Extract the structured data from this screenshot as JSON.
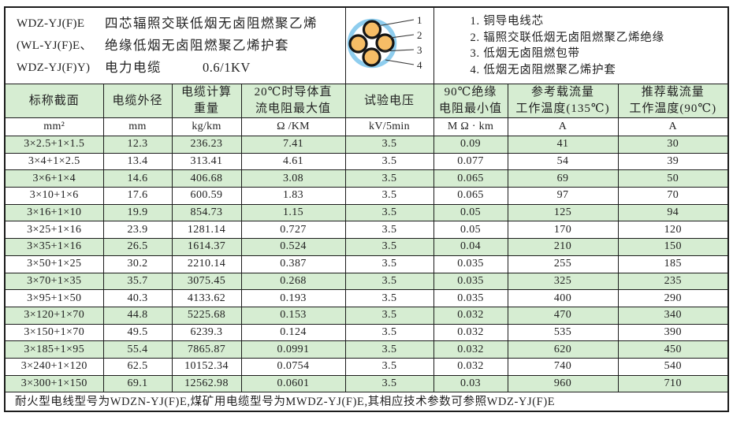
{
  "header": {
    "models": "WDZ-YJ(F)E\n(WL-YJ(F)E、\nWDZ-YJ(F)Y)",
    "description_line1": "四芯辐照交联低烟无卤阻燃聚乙烯",
    "description_line2": "绝缘低烟无卤阻燃聚乙烯护套",
    "description_line3": "电力电缆",
    "voltage": "0.6/1KV",
    "diagram_labels": [
      "1",
      "2",
      "3",
      "4"
    ],
    "legend": [
      "1. 铜导电线芯",
      "2. 辐照交联低烟无卤阻燃聚乙烯绝缘",
      "3. 低烟无卤阻燃包带",
      "4. 低烟无卤阻燃聚乙烯护套"
    ]
  },
  "table": {
    "headers": [
      "标称截面",
      "电缆外径",
      "电缆计算\n重量",
      "20℃时导体直\n流电阻最大值",
      "试验电压",
      "90℃绝缘\n电阻最小值",
      "参考载流量\n工作温度(135℃)",
      "推荐载流量\n工作温度(90℃)"
    ],
    "units": [
      "mm²",
      "mm",
      "kg/km",
      "Ω /KM",
      "kV/5min",
      "M Ω · km",
      "A",
      "A"
    ],
    "rows": [
      [
        "3×2.5+1×1.5",
        "12.3",
        "236.23",
        "7.41",
        "3.5",
        "0.09",
        "41",
        "30"
      ],
      [
        "3×4+1×2.5",
        "13.4",
        "313.41",
        "4.61",
        "3.5",
        "0.077",
        "54",
        "39"
      ],
      [
        "3×6+1×4",
        "14.6",
        "406.68",
        "3.08",
        "3.5",
        "0.065",
        "69",
        "50"
      ],
      [
        "3×10+1×6",
        "17.6",
        "600.59",
        "1.83",
        "3.5",
        "0.065",
        "97",
        "70"
      ],
      [
        "3×16+1×10",
        "19.9",
        "854.73",
        "1.15",
        "3.5",
        "0.05",
        "125",
        "94"
      ],
      [
        "3×25+1×16",
        "23.9",
        "1281.14",
        "0.727",
        "3.5",
        "0.05",
        "170",
        "120"
      ],
      [
        "3×35+1×16",
        "26.5",
        "1614.37",
        "0.524",
        "3.5",
        "0.04",
        "210",
        "150"
      ],
      [
        "3×50+1×25",
        "30.2",
        "2210.14",
        "0.387",
        "3.5",
        "0.035",
        "255",
        "185"
      ],
      [
        "3×70+1×35",
        "35.7",
        "3075.45",
        "0.268",
        "3.5",
        "0.035",
        "325",
        "235"
      ],
      [
        "3×95+1×50",
        "40.3",
        "4133.62",
        "0.193",
        "3.5",
        "0.035",
        "400",
        "290"
      ],
      [
        "3×120+1×70",
        "44.8",
        "5225.68",
        "0.153",
        "3.5",
        "0.032",
        "470",
        "340"
      ],
      [
        "3×150+1×70",
        "49.5",
        "6239.3",
        "0.124",
        "3.5",
        "0.032",
        "535",
        "390"
      ],
      [
        "3×185+1×95",
        "55.4",
        "7865.87",
        "0.0991",
        "3.5",
        "0.032",
        "620",
        "450"
      ],
      [
        "3×240+1×120",
        "62.5",
        "10152.34",
        "0.0754",
        "3.5",
        "0.032",
        "740",
        "540"
      ],
      [
        "3×300+1×150",
        "69.1",
        "12562.98",
        "0.0601",
        "3.5",
        "0.03",
        "960",
        "710"
      ]
    ],
    "footnote": "耐火型电线型号为WDZN-YJ(F)E,煤矿用电缆型号为MWDZ-YJ(F)E,其相应技术参数可参照WDZ-YJ(F)E"
  },
  "colors": {
    "row_green": "#d6edd2",
    "border_dark": "#1c1c1c",
    "conductor_orange": "#f6bd66",
    "sheath_blue": "#8ecdee"
  }
}
